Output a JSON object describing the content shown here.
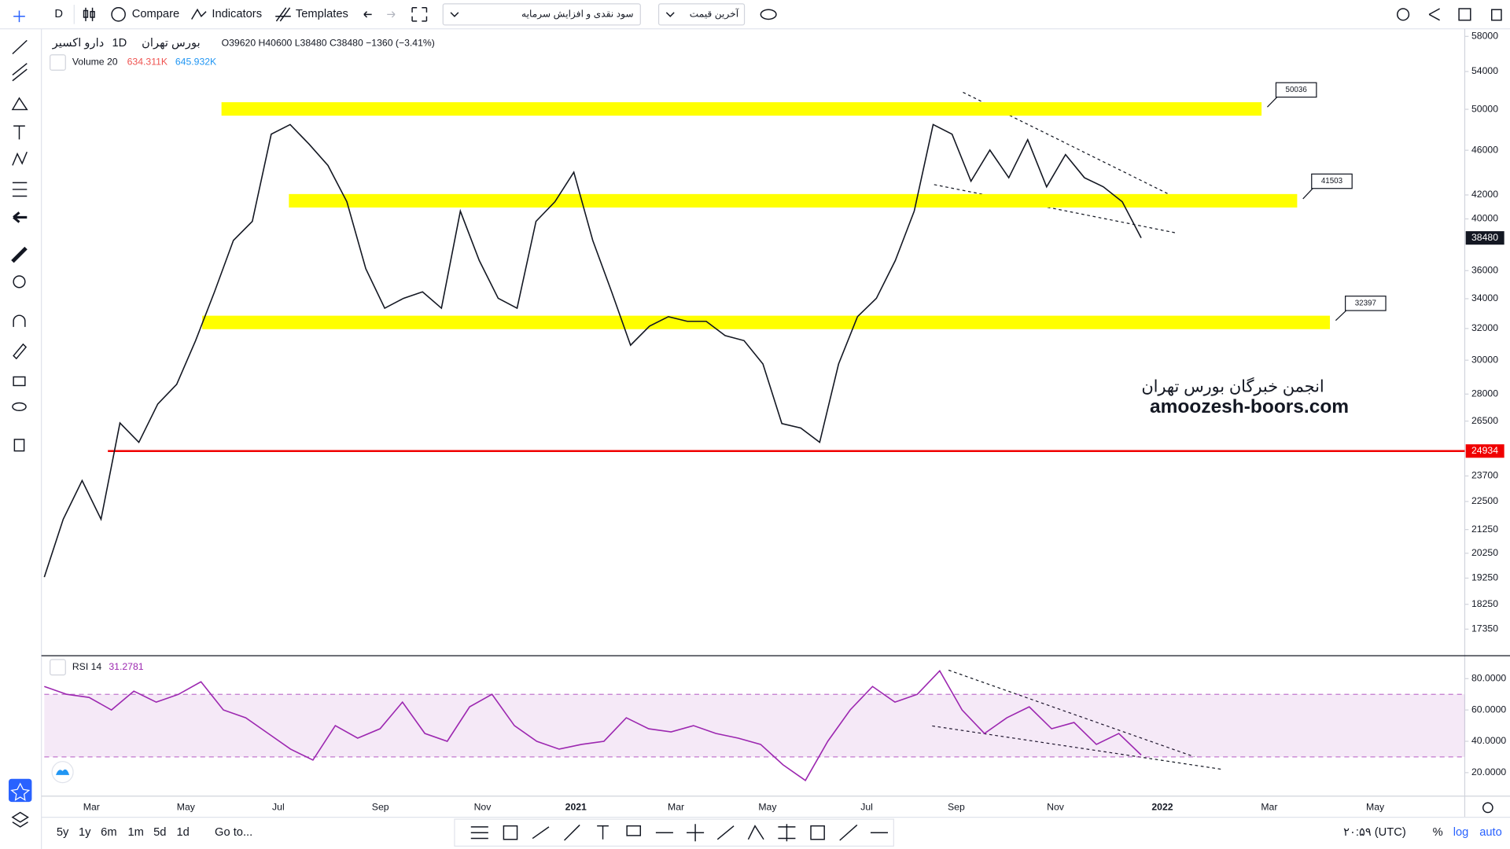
{
  "toolbar": {
    "interval": "D",
    "compare": "Compare",
    "indicators": "Indicators",
    "templates": "Templates",
    "symbol_menu": "سود نقدی و افزایش سرمایه",
    "price_menu": "آخرین قیمت"
  },
  "legend": {
    "name": "دارو اکسیر",
    "interval": "1D",
    "exchange": "بورس تهران",
    "ohlc": "O39620 H40600 L38480 C38480 −1360 (−3.41%)"
  },
  "volume": {
    "label": "Volume 20",
    "value1": "634.311K",
    "value2": "645.932K"
  },
  "chart_data": {
    "type": "line",
    "log": true,
    "color": "#131722",
    "ylim": [
      16500,
      58900
    ],
    "yticks": [
      58000,
      54000,
      50000,
      46000,
      42000,
      40000,
      36000,
      34000,
      32000,
      30000,
      28000,
      26500,
      23700,
      22500,
      21250,
      20250,
      19250,
      18250,
      17350
    ],
    "x_labels": [
      "Mar",
      "May",
      "Jul",
      "Sep",
      "Nov",
      "2021",
      "Mar",
      "May",
      "Jul",
      "Sep",
      "Nov",
      "2022",
      "Mar",
      "May"
    ],
    "values": [
      19290,
      21700,
      23480,
      21700,
      26400,
      25380,
      27440,
      28560,
      31220,
      34480,
      38290,
      39800,
      47530,
      48470,
      46580,
      44600,
      41420,
      36140,
      33350,
      34030,
      34480,
      33350,
      40640,
      36750,
      34030,
      33350,
      39800,
      41420,
      43990,
      38290,
      34480,
      30930,
      32150,
      32780,
      32470,
      32470,
      31540,
      31220,
      29770,
      26370,
      26130,
      25380,
      29770,
      32780,
      34030,
      36750,
      40640,
      48470,
      47530,
      43190,
      46020,
      43500,
      47000,
      42700,
      45600,
      43500,
      42700,
      41420,
      38480
    ],
    "levels": [
      50036,
      41503,
      32397
    ],
    "level_color": "#ffff00",
    "support": 24934,
    "support_color": "#f00000",
    "last_price": 38480
  },
  "rsi": {
    "label": "RSI 14",
    "value": "31.2781",
    "color": "#9c27b0",
    "ylim": [
      5,
      94
    ],
    "band": [
      30,
      70
    ],
    "yticks": [
      {
        "value": 80,
        "label": "80.0000"
      },
      {
        "value": 60,
        "label": "60.0000"
      },
      {
        "value": 40,
        "label": "40.0000"
      },
      {
        "value": 20,
        "label": "20.0000"
      }
    ],
    "values": [
      75,
      70,
      68,
      60,
      72,
      65,
      70,
      78,
      60,
      55,
      45,
      35,
      28,
      50,
      42,
      48,
      65,
      45,
      40,
      62,
      70,
      50,
      40,
      35,
      38,
      40,
      55,
      48,
      46,
      50,
      45,
      42,
      38,
      25,
      15,
      40,
      60,
      75,
      65,
      70,
      85,
      60,
      45,
      55,
      62,
      48,
      52,
      38,
      45,
      31.2781
    ]
  },
  "watermark": {
    "title": "انجمن خبرگان بورس تهران",
    "url": "amoozesh-boors.com"
  },
  "bottom": {
    "ranges": [
      "5y",
      "1y",
      "6m",
      "1m",
      "5d",
      "1d"
    ],
    "goto": "Go to...",
    "time": "۲۰:۵۹ (UTC)",
    "percent": "%",
    "log": "log",
    "auto": "auto"
  }
}
